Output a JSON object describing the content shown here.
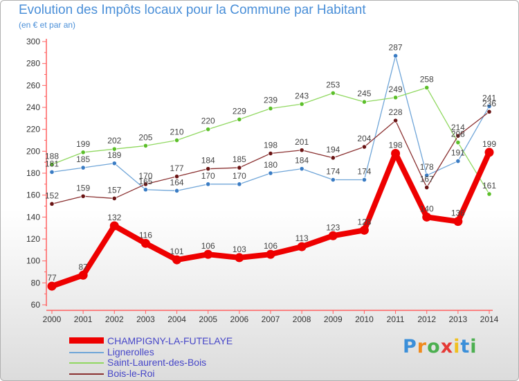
{
  "header": {
    "title": "Evolution des Impôts locaux pour la Commune par Habitant",
    "subtitle": "(en € et par an)"
  },
  "logo": {
    "text": "Proxiti",
    "letters": [
      "P",
      "r",
      "o",
      "x",
      "i",
      "t",
      "i"
    ],
    "colors": [
      "#3b8fd9",
      "#f08a1c",
      "#4caf50",
      "#e53935",
      "#f0c020",
      "#3b8fd9",
      "#4caf50"
    ]
  },
  "chart_data": {
    "type": "line",
    "title": "Evolution des Impôts locaux pour la Commune par Habitant",
    "subtitle": "(en € et par an)",
    "xlabel": "",
    "ylabel": "",
    "x": [
      "2000",
      "2001",
      "2002",
      "2003",
      "2004",
      "2005",
      "2006",
      "2007",
      "2008",
      "2009",
      "2010",
      "2011",
      "2012",
      "2013",
      "2014"
    ],
    "ylim": [
      60,
      300
    ],
    "yticks": [
      60,
      80,
      100,
      120,
      140,
      160,
      180,
      200,
      220,
      240,
      260,
      280,
      300
    ],
    "grid": false,
    "legend_position": "bottom-left",
    "series": [
      {
        "name": "CHAMPIGNY-LA-FUTELAYE",
        "color": "#ee0000",
        "marker_color": "#ee0000",
        "emphasis": true,
        "values": [
          77,
          87,
          132,
          116,
          101,
          106,
          103,
          106,
          113,
          123,
          128,
          198,
          140,
          136,
          199
        ],
        "labels": [
          "77",
          "87",
          "132",
          "116",
          "101",
          "106",
          "103",
          "106",
          "113",
          "123",
          "128",
          "198",
          "140",
          "136",
          "199"
        ]
      },
      {
        "name": "Lignerolles",
        "color": "#6fa5d8",
        "marker_color": "#3a7cc4",
        "emphasis": false,
        "values": [
          181,
          185,
          189,
          165,
          164,
          170,
          170,
          180,
          184,
          174,
          174,
          287,
          178,
          191,
          241
        ],
        "labels": [
          "181",
          "185",
          "189",
          "165",
          "164",
          "170",
          "170",
          "180",
          "184",
          "174",
          "174",
          "287",
          "178",
          "191",
          "241"
        ]
      },
      {
        "name": "Saint-Laurent-des-Bois",
        "color": "#90d860",
        "marker_color": "#5cbf2a",
        "emphasis": false,
        "values": [
          188,
          199,
          202,
          205,
          210,
          220,
          229,
          239,
          243,
          253,
          245,
          249,
          258,
          208,
          161
        ],
        "labels": [
          "188",
          "199",
          "202",
          "205",
          "210",
          "220",
          "229",
          "239",
          "243",
          "253",
          "245",
          "249",
          "258",
          "208",
          "161"
        ]
      },
      {
        "name": "Bois-le-Roi",
        "color": "#8a3030",
        "marker_color": "#6a1414",
        "emphasis": false,
        "values": [
          152,
          159,
          157,
          170,
          177,
          184,
          185,
          198,
          201,
          194,
          204,
          228,
          167,
          214,
          236
        ],
        "labels": [
          "152",
          "159",
          "157",
          "170",
          "177",
          "184",
          "185",
          "198",
          "201",
          "194",
          "204",
          "228",
          "167",
          "214",
          "236"
        ]
      }
    ]
  }
}
